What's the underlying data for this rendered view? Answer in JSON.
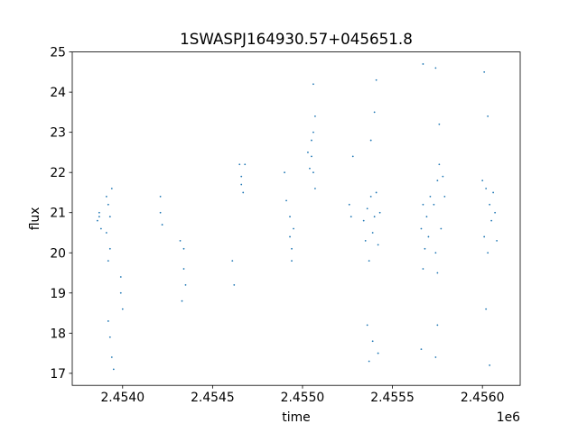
{
  "chart_data": {
    "type": "scatter",
    "title": "1SWASPJ164930.57+045651.8",
    "xlabel": "time",
    "ylabel": "flux",
    "x_offset_label": "1e6",
    "xlim": [
      2.45372,
      2.45621
    ],
    "ylim": [
      16.7,
      25.0
    ],
    "x_tick_values": [
      2.454,
      2.4545,
      2.455,
      2.4555,
      2.456
    ],
    "x_tick_labels": [
      "2.4540",
      "2.4545",
      "2.4550",
      "2.4555",
      "2.4560"
    ],
    "y_tick_values": [
      17,
      18,
      19,
      20,
      21,
      22,
      23,
      24,
      25
    ],
    "y_tick_labels": [
      "17",
      "18",
      "19",
      "20",
      "21",
      "22",
      "23",
      "24",
      "25"
    ],
    "grid": false,
    "marker_color": "#1f77b4",
    "series": [
      {
        "points": [
          [
            2.45386,
            20.8
          ],
          [
            2.45387,
            21.0
          ],
          [
            2.45388,
            20.6
          ],
          [
            2.45387,
            20.9
          ],
          [
            2.45391,
            21.4
          ],
          [
            2.45391,
            20.5
          ],
          [
            2.45392,
            21.2
          ],
          [
            2.45393,
            20.9
          ],
          [
            2.45393,
            20.1
          ],
          [
            2.45392,
            19.8
          ],
          [
            2.45394,
            21.6
          ],
          [
            2.45392,
            18.3
          ],
          [
            2.45393,
            17.9
          ],
          [
            2.45394,
            17.4
          ],
          [
            2.45395,
            17.1
          ],
          [
            2.45399,
            19.4
          ],
          [
            2.45399,
            19.0
          ],
          [
            2.454,
            18.6
          ],
          [
            2.45421,
            21.4
          ],
          [
            2.45421,
            21.0
          ],
          [
            2.45422,
            20.7
          ],
          [
            2.45432,
            20.3
          ],
          [
            2.45434,
            20.1
          ],
          [
            2.45434,
            19.6
          ],
          [
            2.45435,
            19.2
          ],
          [
            2.45433,
            18.8
          ],
          [
            2.45461,
            19.8
          ],
          [
            2.45462,
            19.2
          ],
          [
            2.45465,
            22.2
          ],
          [
            2.45466,
            21.9
          ],
          [
            2.45466,
            21.7
          ],
          [
            2.45467,
            21.5
          ],
          [
            2.45468,
            22.2
          ],
          [
            2.4549,
            22.0
          ],
          [
            2.45491,
            21.3
          ],
          [
            2.45493,
            20.9
          ],
          [
            2.45493,
            20.4
          ],
          [
            2.45494,
            20.1
          ],
          [
            2.45494,
            19.8
          ],
          [
            2.45495,
            20.6
          ],
          [
            2.45503,
            22.5
          ],
          [
            2.45504,
            22.1
          ],
          [
            2.45505,
            22.8
          ],
          [
            2.45505,
            22.4
          ],
          [
            2.45506,
            23.0
          ],
          [
            2.45506,
            22.0
          ],
          [
            2.45507,
            21.6
          ],
          [
            2.45506,
            24.2
          ],
          [
            2.45507,
            23.4
          ],
          [
            2.45526,
            21.2
          ],
          [
            2.45527,
            20.9
          ],
          [
            2.45528,
            22.4
          ],
          [
            2.45534,
            20.8
          ],
          [
            2.45535,
            20.3
          ],
          [
            2.45536,
            21.1
          ],
          [
            2.45537,
            19.8
          ],
          [
            2.45538,
            21.4
          ],
          [
            2.45539,
            20.5
          ],
          [
            2.4554,
            20.9
          ],
          [
            2.45541,
            21.5
          ],
          [
            2.45542,
            20.2
          ],
          [
            2.45543,
            21.0
          ],
          [
            2.45538,
            22.8
          ],
          [
            2.4554,
            23.5
          ],
          [
            2.45541,
            24.3
          ],
          [
            2.45536,
            18.2
          ],
          [
            2.45539,
            17.8
          ],
          [
            2.45542,
            17.5
          ],
          [
            2.45537,
            17.3
          ],
          [
            2.45566,
            20.6
          ],
          [
            2.45567,
            19.6
          ],
          [
            2.45567,
            21.2
          ],
          [
            2.45568,
            20.1
          ],
          [
            2.45569,
            20.9
          ],
          [
            2.4557,
            20.4
          ],
          [
            2.45571,
            21.4
          ],
          [
            2.45567,
            24.7
          ],
          [
            2.45566,
            17.6
          ],
          [
            2.45573,
            21.2
          ],
          [
            2.45574,
            20.0
          ],
          [
            2.45575,
            21.8
          ],
          [
            2.45575,
            19.5
          ],
          [
            2.45576,
            22.2
          ],
          [
            2.45577,
            20.6
          ],
          [
            2.45578,
            21.9
          ],
          [
            2.45579,
            21.4
          ],
          [
            2.45574,
            24.6
          ],
          [
            2.45576,
            23.2
          ],
          [
            2.45575,
            18.2
          ],
          [
            2.45574,
            17.4
          ],
          [
            2.456,
            21.8
          ],
          [
            2.45601,
            20.4
          ],
          [
            2.45602,
            21.6
          ],
          [
            2.45603,
            20.0
          ],
          [
            2.45604,
            21.2
          ],
          [
            2.45605,
            20.8
          ],
          [
            2.45606,
            21.5
          ],
          [
            2.45607,
            21.0
          ],
          [
            2.45608,
            20.3
          ],
          [
            2.45601,
            24.5
          ],
          [
            2.45603,
            23.4
          ],
          [
            2.45604,
            17.2
          ],
          [
            2.45602,
            18.6
          ]
        ]
      }
    ]
  }
}
